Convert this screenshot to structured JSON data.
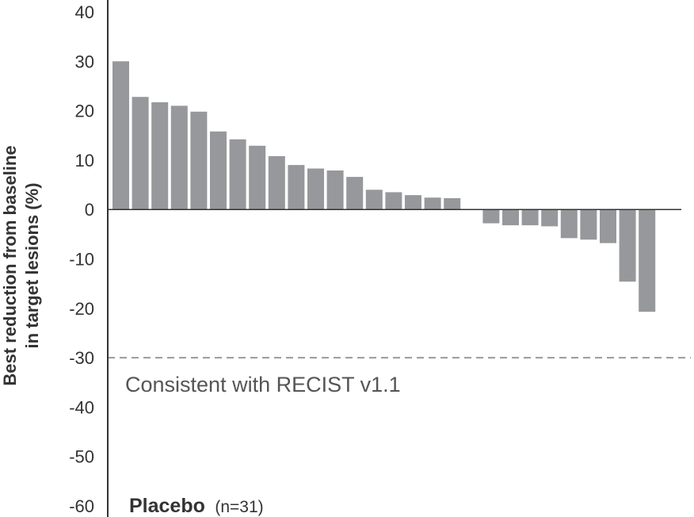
{
  "chart_data": {
    "type": "bar",
    "ylabel_lines": [
      "Best reduction from baseline",
      "in target lesions (%)"
    ],
    "ylim": [
      -60,
      40
    ],
    "yticks": [
      40,
      30,
      20,
      10,
      0,
      -10,
      -20,
      -30,
      -40,
      -50,
      -60
    ],
    "values": [
      30,
      22.8,
      21.7,
      21,
      19.8,
      15.8,
      14.2,
      12.9,
      10.8,
      9,
      8.3,
      7.9,
      6.6,
      4,
      3.5,
      2.9,
      2.4,
      2.3,
      0,
      -2.8,
      -3.2,
      -3.2,
      -3.4,
      -5.8,
      -6.1,
      -6.8,
      -14.6,
      -20.7
    ],
    "reference_line": {
      "value": -30,
      "label": "Consistent with RECIST v1.1"
    },
    "group_label": "Placebo",
    "group_n": "(n=31)",
    "bar_color": "#97989b"
  }
}
